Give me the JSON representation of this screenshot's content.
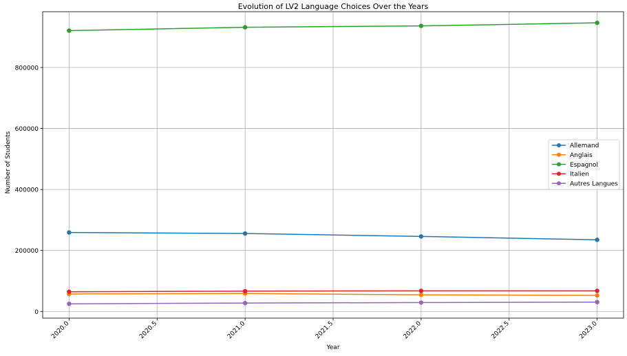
{
  "chart_data": {
    "type": "line",
    "title": "Evolution of LV2 Language Choices Over the Years",
    "xlabel": "Year",
    "ylabel": "Number of Students",
    "x": [
      2020,
      2021,
      2022,
      2023
    ],
    "xlim": [
      2019.85,
      2023.15
    ],
    "ylim": [
      -22000,
      983000
    ],
    "xticks": [
      2020.0,
      2020.5,
      2021.0,
      2021.5,
      2022.0,
      2022.5,
      2023.0
    ],
    "xtick_labels": [
      "2020.0",
      "2020.5",
      "2021.0",
      "2021.5",
      "2022.0",
      "2022.5",
      "2023.0"
    ],
    "yticks": [
      0,
      200000,
      400000,
      600000,
      800000
    ],
    "ytick_labels": [
      "0",
      "200000",
      "400000",
      "600000",
      "800000"
    ],
    "grid": true,
    "legend_position": "right",
    "series": [
      {
        "name": "Allemand",
        "color": "#1f77b4",
        "values": [
          259000,
          255500,
          246000,
          235000
        ]
      },
      {
        "name": "Anglais",
        "color": "#ff7f0e",
        "values": [
          57000,
          59000,
          54500,
          52500
        ]
      },
      {
        "name": "Espagnol",
        "color": "#2ca02c",
        "values": [
          921000,
          932000,
          936500,
          946500
        ]
      },
      {
        "name": "Italien",
        "color": "#d62728",
        "values": [
          64500,
          66500,
          67500,
          67500
        ]
      },
      {
        "name": "Autres Langues",
        "color": "#9467bd",
        "values": [
          25000,
          27500,
          29000,
          30500
        ]
      }
    ]
  }
}
